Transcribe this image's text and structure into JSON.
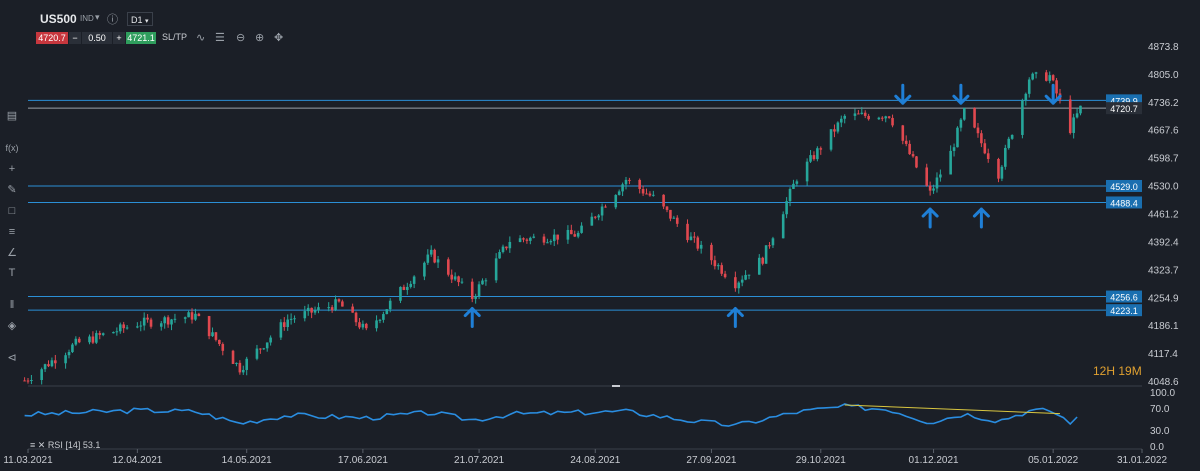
{
  "header": {
    "symbol": "US500",
    "symbol_suffix": "IND",
    "timeframe": "D1",
    "bid": "4720.7",
    "spread": "0.50",
    "ask": "4721.1",
    "sltp_label": "SL/TP"
  },
  "toolbar_icons": [
    "info-icon",
    "line-tool-icon",
    "bars-tool-icon",
    "zoom-out-icon",
    "zoom-in-icon",
    "move-icon"
  ],
  "sidebar_icons": [
    "chart-type-icon",
    "function-icon",
    "crosshair-icon",
    "pencil-icon",
    "rectangle-icon",
    "fib-icon",
    "fan-icon",
    "text-icon",
    "objects-icon",
    "layers-icon",
    "share-icon"
  ],
  "countdown": "12H 19M",
  "rsi_label": "RSI [14] 53.1",
  "colors": {
    "bg": "#1b1f27",
    "up": "#26a69a",
    "down": "#e0484f",
    "level": "#2b8fd6",
    "arrow": "#1f7fd6",
    "rsi": "#2a8de0",
    "trend": "#d9c640"
  },
  "chart_data": {
    "type": "candlestick",
    "ylim": [
      4048.6,
      4873.8
    ],
    "y_ticks": [
      "4873.8",
      "4805.0",
      "4736.2",
      "4667.6",
      "4598.7",
      "4530.0",
      "4461.2",
      "4392.4",
      "4323.7",
      "4254.9",
      "4186.1",
      "4117.4",
      "4048.6"
    ],
    "x_ticks": [
      "11.03.2021",
      "12.04.2021",
      "14.05.2021",
      "17.06.2021",
      "21.07.2021",
      "24.08.2021",
      "27.09.2021",
      "29.10.2021",
      "01.12.2021",
      "05.01.2022",
      "31.01.2022"
    ],
    "horizontal_levels": [
      "4739.9",
      "4720.7",
      "4529.0",
      "4488.4",
      "4256.6",
      "4223.1"
    ],
    "current_price": "4720.7",
    "arrows": [
      {
        "dir": "up",
        "date": "2021-07-19",
        "price": 4205
      },
      {
        "dir": "up",
        "date": "2021-10-04",
        "price": 4205
      },
      {
        "dir": "up",
        "date": "2021-11-30",
        "price": 4450
      },
      {
        "dir": "up",
        "date": "2021-12-15",
        "price": 4450
      },
      {
        "dir": "down",
        "date": "2021-11-22",
        "price": 4755
      },
      {
        "dir": "down",
        "date": "2021-12-09",
        "price": 4755
      },
      {
        "dir": "down",
        "date": "2022-01-05",
        "price": 4755
      }
    ],
    "path": [
      [
        "2021-03-10",
        4050
      ],
      [
        "2021-03-25",
        4140
      ],
      [
        "2021-04-12",
        4190
      ],
      [
        "2021-04-29",
        4210
      ],
      [
        "2021-05-12",
        4080
      ],
      [
        "2021-05-26",
        4200
      ],
      [
        "2021-06-10",
        4240
      ],
      [
        "2021-06-18",
        4170
      ],
      [
        "2021-07-07",
        4360
      ],
      [
        "2021-07-19",
        4255
      ],
      [
        "2021-07-30",
        4395
      ],
      [
        "2021-08-19",
        4410
      ],
      [
        "2021-09-02",
        4545
      ],
      [
        "2021-09-10",
        4500
      ],
      [
        "2021-09-22",
        4390
      ],
      [
        "2021-10-04",
        4290
      ],
      [
        "2021-10-12",
        4350
      ],
      [
        "2021-10-22",
        4550
      ],
      [
        "2021-11-05",
        4700
      ],
      [
        "2021-11-18",
        4705
      ],
      [
        "2021-11-30",
        4510
      ],
      [
        "2021-12-06",
        4610
      ],
      [
        "2021-12-10",
        4710
      ],
      [
        "2021-12-20",
        4560
      ],
      [
        "2021-12-29",
        4795
      ],
      [
        "2022-01-04",
        4800
      ],
      [
        "2022-01-10",
        4670
      ],
      [
        "2022-01-13",
        4720
      ]
    ],
    "rsi": {
      "ylim": [
        0,
        100
      ],
      "y_ticks": [
        "100.0",
        "70.0",
        "30.0",
        "0.0"
      ],
      "values": [
        [
          "2021-03-10",
          58
        ],
        [
          "2021-04-12",
          66
        ],
        [
          "2021-04-29",
          64
        ],
        [
          "2021-05-12",
          42
        ],
        [
          "2021-05-26",
          57
        ],
        [
          "2021-06-18",
          52
        ],
        [
          "2021-07-07",
          62
        ],
        [
          "2021-07-19",
          48
        ],
        [
          "2021-07-30",
          59
        ],
        [
          "2021-09-02",
          64
        ],
        [
          "2021-09-22",
          46
        ],
        [
          "2021-10-04",
          38
        ],
        [
          "2021-10-22",
          63
        ],
        [
          "2021-11-05",
          73
        ],
        [
          "2021-11-18",
          68
        ],
        [
          "2021-11-30",
          44
        ],
        [
          "2021-12-10",
          60
        ],
        [
          "2021-12-20",
          47
        ],
        [
          "2021-12-29",
          65
        ],
        [
          "2022-01-04",
          66
        ],
        [
          "2022-01-10",
          45
        ],
        [
          "2022-01-13",
          53
        ]
      ],
      "trendline": [
        [
          "2021-11-05",
          76
        ],
        [
          "2022-01-07",
          60
        ]
      ]
    }
  }
}
